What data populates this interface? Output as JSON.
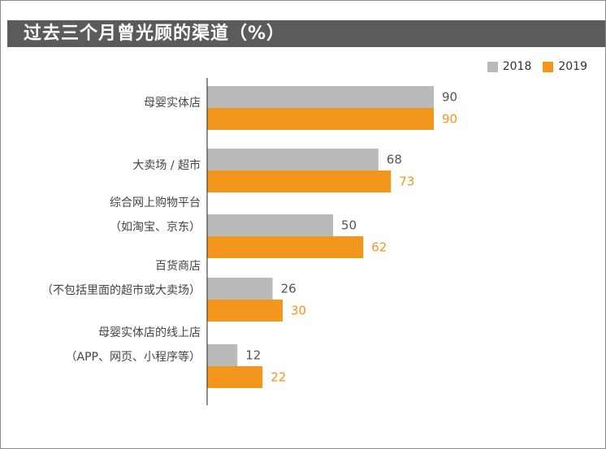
{
  "title": "过去三个月曾光顾的渠道（%）",
  "legend": [
    {
      "name": "2018",
      "color": "#b8babc"
    },
    {
      "name": "2019",
      "color": "#f2961c"
    }
  ],
  "chart_data": {
    "type": "bar",
    "orientation": "horizontal",
    "title": "过去三个月曾光顾的渠道（%）",
    "categories": [
      [
        "母婴实体店"
      ],
      [
        "大卖场 / 超市"
      ],
      [
        "综合网上购物平台",
        "（如淘宝、京东）"
      ],
      [
        "百货商店",
        "（不包括里面的超市或大卖场）"
      ],
      [
        "母婴实体店的线上店",
        "（APP、网页、小程序等）"
      ]
    ],
    "series": [
      {
        "name": "2018",
        "color": "#b8babc",
        "label_color": "#555555",
        "values": [
          90,
          68,
          50,
          26,
          12
        ]
      },
      {
        "name": "2019",
        "color": "#f2961c",
        "label_color": "#f2961c",
        "values": [
          90,
          73,
          62,
          30,
          22
        ]
      }
    ],
    "xlim": [
      0,
      100
    ],
    "grid": false,
    "legend_position": "top-right"
  }
}
